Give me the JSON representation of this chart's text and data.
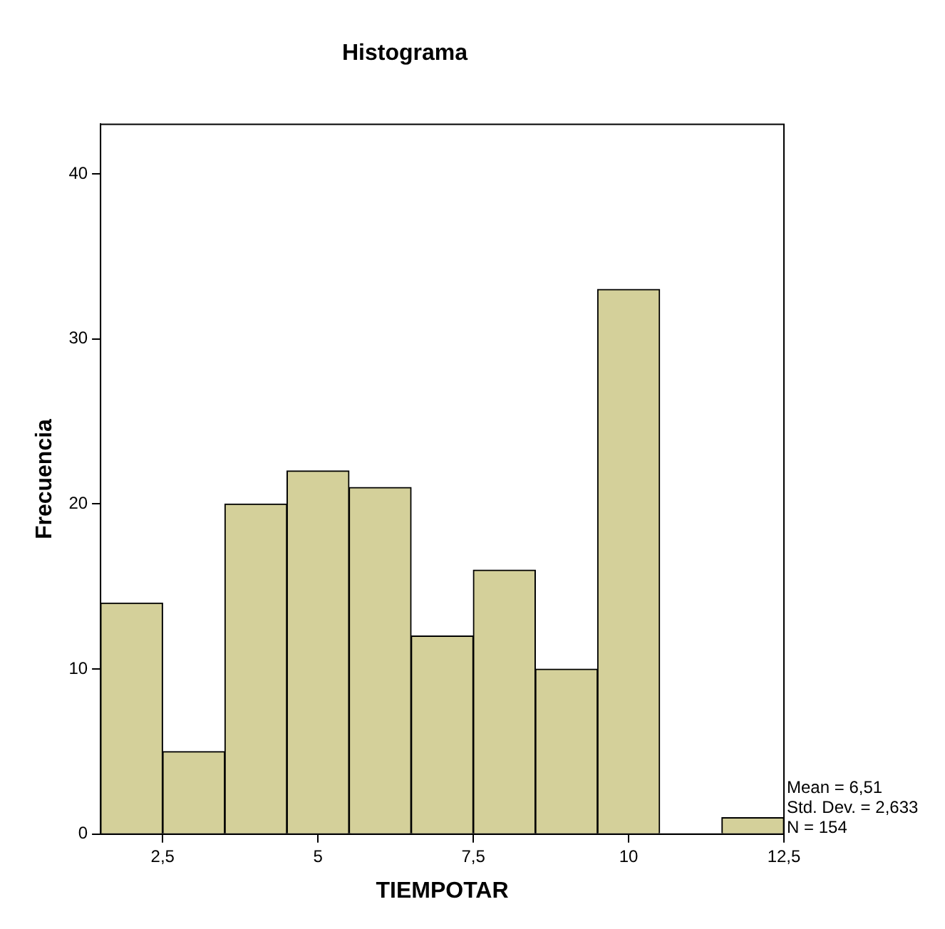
{
  "chart_data": {
    "type": "histogram",
    "title": "Histograma",
    "xlabel": "TIEMPOTAR",
    "ylabel": "Frecuencia",
    "bins": [
      1.5,
      2.5,
      3.5,
      4.5,
      5.5,
      6.5,
      7.5,
      8.5,
      9.5,
      10.5,
      11.5,
      12.5
    ],
    "values": [
      14,
      5,
      20,
      22,
      21,
      12,
      16,
      10,
      33,
      0,
      1
    ],
    "color": "#d4d09a",
    "xlim": [
      1.5,
      12.5
    ],
    "xticks": [
      {
        "value": 2.5,
        "label": "2,5"
      },
      5,
      {
        "value": 7.5,
        "label": "7,5"
      },
      10,
      {
        "value": 12.5,
        "label": "12,5"
      }
    ],
    "ylim": [
      0,
      43
    ],
    "yticks": [
      0,
      10,
      20,
      30,
      40
    ],
    "grid": false,
    "legend": false,
    "annotations": [
      "Mean = 6,51",
      "Std. Dev. = 2,633",
      "N = 154"
    ]
  }
}
